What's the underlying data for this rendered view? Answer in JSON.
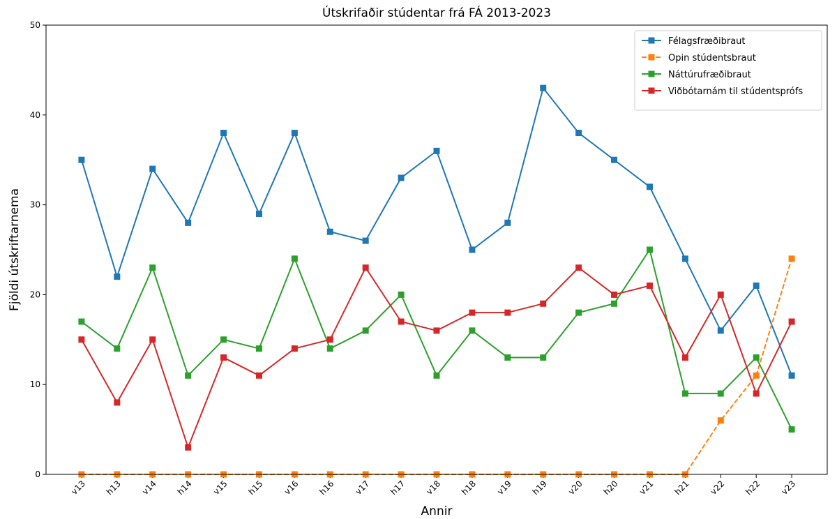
{
  "chart_data": {
    "type": "line",
    "title": "Útskrifaðir stúdentar frá FÁ 2013-2023",
    "x_label": "Annir",
    "y_label": "Fjöldi útskriftarnema",
    "categories": [
      "v13",
      "h13",
      "v14",
      "h14",
      "v15",
      "h15",
      "v16",
      "h16",
      "v17",
      "h17",
      "v18",
      "h18",
      "v19",
      "h19",
      "v20",
      "h20",
      "v21",
      "h21",
      "v22",
      "h22",
      "v23"
    ],
    "series": [
      {
        "name": "Félagsfræðibraut",
        "color": "#1f77b4",
        "linestyle": "solid",
        "values": [
          35,
          22,
          34,
          28,
          38,
          29,
          38,
          27,
          26,
          33,
          36,
          25,
          28,
          43,
          38,
          35,
          32,
          24,
          16,
          21,
          11
        ]
      },
      {
        "name": "Opin stúdentsbraut",
        "color": "#ff7f0e",
        "linestyle": "dashed",
        "values": [
          0,
          0,
          0,
          0,
          0,
          0,
          0,
          0,
          0,
          0,
          0,
          0,
          0,
          0,
          0,
          0,
          0,
          0,
          6,
          11,
          24
        ]
      },
      {
        "name": "Náttúrufræðibraut",
        "color": "#2ca02c",
        "linestyle": "solid",
        "values": [
          17,
          14,
          23,
          11,
          15,
          14,
          24,
          14,
          16,
          20,
          11,
          16,
          13,
          13,
          18,
          19,
          25,
          9,
          9,
          13,
          5
        ]
      },
      {
        "name": "Viðbótarnám til stúdentsprófs",
        "color": "#d62728",
        "linestyle": "solid",
        "values": [
          15,
          8,
          15,
          3,
          13,
          11,
          14,
          15,
          23,
          17,
          16,
          18,
          18,
          19,
          23,
          20,
          21,
          13,
          20,
          9,
          17
        ]
      }
    ],
    "ylim": [
      0,
      50
    ],
    "yticks": [
      0,
      10,
      20,
      30,
      40,
      50
    ],
    "legend": "upper right"
  }
}
